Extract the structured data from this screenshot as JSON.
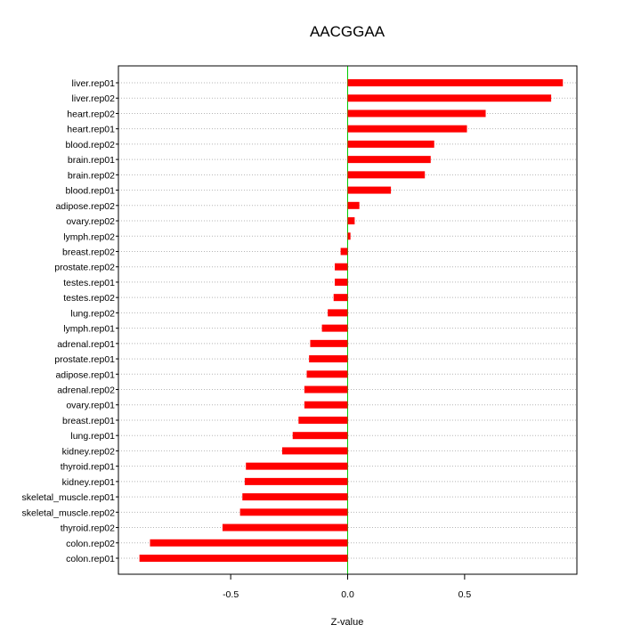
{
  "chart_data": {
    "type": "bar",
    "orientation": "horizontal",
    "title": "AACGGAA",
    "xlabel": "Z-value",
    "ylabel": "",
    "xlim": [
      -0.98,
      0.98
    ],
    "xticks": [
      -0.5,
      0.0,
      0.5
    ],
    "xtick_labels": [
      "-0.5",
      "0.0",
      "0.5"
    ],
    "grid": "horizontal dotted",
    "bar_color": "#ff0000",
    "zero_line_color": "#00cc00",
    "categories": [
      "liver.rep01",
      "liver.rep02",
      "heart.rep02",
      "heart.rep01",
      "blood.rep02",
      "brain.rep01",
      "brain.rep02",
      "blood.rep01",
      "adipose.rep02",
      "ovary.rep02",
      "lymph.rep02",
      "breast.rep02",
      "prostate.rep02",
      "testes.rep01",
      "testes.rep02",
      "lung.rep02",
      "lymph.rep01",
      "adrenal.rep01",
      "prostate.rep01",
      "adipose.rep01",
      "adrenal.rep02",
      "ovary.rep01",
      "breast.rep01",
      "lung.rep01",
      "kidney.rep02",
      "thyroid.rep01",
      "kidney.rep01",
      "skeletal_muscle.rep01",
      "skeletal_muscle.rep02",
      "thyroid.rep02",
      "colon.rep02",
      "colon.rep01"
    ],
    "values": [
      0.92,
      0.87,
      0.59,
      0.51,
      0.37,
      0.355,
      0.33,
      0.185,
      0.05,
      0.03,
      0.012,
      -0.03,
      -0.055,
      -0.055,
      -0.06,
      -0.085,
      -0.11,
      -0.16,
      -0.165,
      -0.175,
      -0.185,
      -0.185,
      -0.21,
      -0.235,
      -0.28,
      -0.435,
      -0.44,
      -0.45,
      -0.46,
      -0.535,
      -0.845,
      -0.89
    ]
  }
}
